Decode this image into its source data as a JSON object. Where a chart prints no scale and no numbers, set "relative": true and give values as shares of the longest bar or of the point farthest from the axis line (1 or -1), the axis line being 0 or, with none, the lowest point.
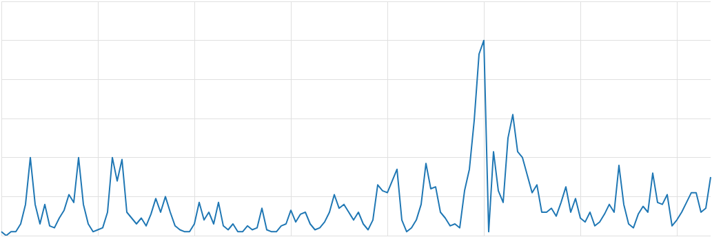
{
  "chart_data": {
    "type": "line",
    "relative": true,
    "grid": true,
    "color": "#1f77b4",
    "categories": [
      null,
      null,
      null,
      null,
      null,
      null,
      null,
      null,
      null,
      null,
      null,
      null,
      null,
      null,
      null,
      null,
      null,
      null,
      null,
      null,
      null,
      null,
      null,
      null,
      null,
      null,
      null,
      null,
      null,
      null,
      null,
      null,
      null,
      null,
      null,
      null,
      null,
      null,
      null,
      null,
      null,
      null,
      null,
      null,
      null,
      null,
      null,
      null,
      null,
      null,
      null,
      null,
      null,
      null,
      null,
      null,
      null,
      null,
      null,
      null,
      null,
      null,
      null,
      null,
      null,
      null,
      null,
      null,
      null,
      null,
      null,
      null,
      null,
      null,
      null,
      null,
      null,
      null,
      null,
      null,
      null,
      null,
      null,
      null,
      null,
      null,
      null,
      null,
      null,
      null,
      null,
      null,
      null,
      null,
      null,
      null,
      null,
      null,
      null,
      null,
      null,
      null,
      null,
      null,
      null,
      null,
      null,
      null,
      null,
      null,
      null,
      null,
      null,
      null,
      null,
      null,
      null,
      null,
      null,
      null,
      null,
      null,
      null,
      null,
      null,
      null,
      null,
      null,
      null,
      null,
      null,
      null,
      null,
      null,
      null,
      null,
      null,
      null,
      null,
      null,
      null,
      null,
      null,
      null,
      null,
      null,
      null,
      null
    ],
    "values": [
      0.02,
      0,
      0.02,
      0.02,
      0.06,
      0.16,
      0.4,
      0.16,
      0.06,
      0.16,
      0.05,
      0.04,
      0.09,
      0.13,
      0.21,
      0.17,
      0.4,
      0.16,
      0.06,
      0.02,
      0.03,
      0.04,
      0.12,
      0.4,
      0.28,
      0.39,
      0.12,
      0.09,
      0.06,
      0.09,
      0.05,
      0.11,
      0.19,
      0.12,
      0.2,
      0.12,
      0.05,
      0.03,
      0.02,
      0.02,
      0.06,
      0.17,
      0.08,
      0.12,
      0.06,
      0.17,
      0.05,
      0.03,
      0.06,
      0.02,
      0.02,
      0.05,
      0.03,
      0.04,
      0.14,
      0.03,
      0.02,
      0.02,
      0.05,
      0.06,
      0.13,
      0.07,
      0.11,
      0.12,
      0.06,
      0.03,
      0.04,
      0.07,
      0.12,
      0.21,
      0.14,
      0.16,
      0.12,
      0.08,
      0.12,
      0.06,
      0.03,
      0.08,
      0.26,
      0.23,
      0.22,
      0.28,
      0.34,
      0.08,
      0.02,
      0.04,
      0.08,
      0.16,
      0.37,
      0.24,
      0.25,
      0.12,
      0.09,
      0.05,
      0.06,
      0.04,
      0.23,
      0.34,
      0.59,
      0.93,
      1,
      0.02,
      0.43,
      0.23,
      0.17,
      0.5,
      0.62,
      0.43,
      0.4,
      0.31,
      0.22,
      0.26,
      0.12,
      0.12,
      0.14,
      0.1,
      0.17,
      0.25,
      0.12,
      0.19,
      0.09,
      0.07,
      0.12,
      0.05,
      0.07,
      0.11,
      0.16,
      0.12,
      0.36,
      0.16,
      0.06,
      0.04,
      0.11,
      0.15,
      0.12,
      0.32,
      0.17,
      0.16,
      0.21,
      0.05,
      0.08,
      0.12,
      0.17,
      0.22,
      0.22,
      0.12,
      0.14,
      0.3
    ]
  }
}
